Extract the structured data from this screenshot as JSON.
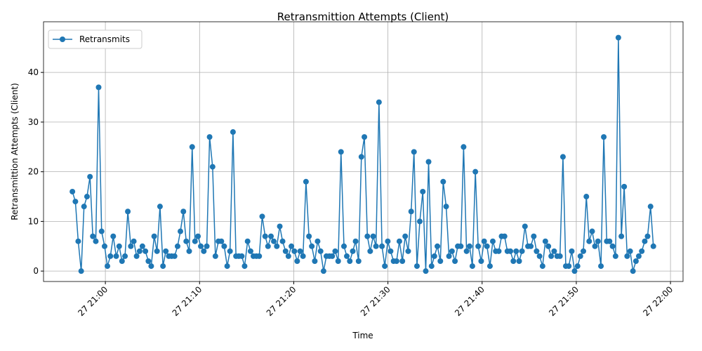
{
  "chart_data": {
    "type": "line",
    "title": "Retransmittion Attempts (Client)",
    "xlabel": "Time",
    "ylabel": "Retransmittion Attempts (Client)",
    "x": [
      "27 20:56:30",
      "27 20:56:49",
      "27 20:57:07",
      "27 20:57:26",
      "27 20:57:44",
      "27 20:58:03",
      "27 20:58:22",
      "27 20:58:40",
      "27 20:58:59",
      "27 20:59:17",
      "27 20:59:36",
      "27 20:59:55",
      "27 21:00:13",
      "27 21:00:32",
      "27 21:00:50",
      "27 21:01:09",
      "27 21:01:28",
      "27 21:01:46",
      "27 21:02:05",
      "27 21:02:23",
      "27 21:02:42",
      "27 21:03:01",
      "27 21:03:19",
      "27 21:03:38",
      "27 21:03:56",
      "27 21:04:15",
      "27 21:04:34",
      "27 21:04:52",
      "27 21:05:11",
      "27 21:05:29",
      "27 21:05:48",
      "27 21:06:07",
      "27 21:06:25",
      "27 21:06:44",
      "27 21:07:02",
      "27 21:07:21",
      "27 21:07:40",
      "27 21:07:58",
      "27 21:08:17",
      "27 21:08:35",
      "27 21:08:54",
      "27 21:09:13",
      "27 21:09:31",
      "27 21:09:50",
      "27 21:10:08",
      "27 21:10:27",
      "27 21:10:46",
      "27 21:11:04",
      "27 21:11:23",
      "27 21:11:41",
      "27 21:12:00",
      "27 21:12:19",
      "27 21:12:37",
      "27 21:12:56",
      "27 21:13:14",
      "27 21:13:33",
      "27 21:13:52",
      "27 21:14:10",
      "27 21:14:29",
      "27 21:14:47",
      "27 21:15:06",
      "27 21:15:25",
      "27 21:15:43",
      "27 21:16:02",
      "27 21:16:20",
      "27 21:16:39",
      "27 21:16:58",
      "27 21:17:16",
      "27 21:17:35",
      "27 21:17:53",
      "27 21:18:12",
      "27 21:18:31",
      "27 21:18:49",
      "27 21:19:08",
      "27 21:19:26",
      "27 21:19:45",
      "27 21:20:04",
      "27 21:20:22",
      "27 21:20:41",
      "27 21:20:59",
      "27 21:21:18",
      "27 21:21:37",
      "27 21:21:55",
      "27 21:22:14",
      "27 21:22:32",
      "27 21:22:51",
      "27 21:23:10",
      "27 21:23:28",
      "27 21:23:47",
      "27 21:24:05",
      "27 21:24:24",
      "27 21:24:43",
      "27 21:25:01",
      "27 21:25:20",
      "27 21:25:38",
      "27 21:25:57",
      "27 21:26:16",
      "27 21:26:34",
      "27 21:26:53",
      "27 21:27:11",
      "27 21:27:30",
      "27 21:27:49",
      "27 21:28:07",
      "27 21:28:26",
      "27 21:28:44",
      "27 21:29:03",
      "27 21:29:22",
      "27 21:29:40",
      "27 21:29:59",
      "27 21:30:17",
      "27 21:30:36",
      "27 21:30:55",
      "27 21:31:13",
      "27 21:31:32",
      "27 21:31:50",
      "27 21:32:09",
      "27 21:32:28",
      "27 21:32:46",
      "27 21:33:05",
      "27 21:33:23",
      "27 21:33:42",
      "27 21:34:01",
      "27 21:34:19",
      "27 21:34:38",
      "27 21:34:56",
      "27 21:35:15",
      "27 21:35:34",
      "27 21:35:52",
      "27 21:36:11",
      "27 21:36:29",
      "27 21:36:48",
      "27 21:37:07",
      "27 21:37:25",
      "27 21:37:44",
      "27 21:38:02",
      "27 21:38:21",
      "27 21:38:40",
      "27 21:38:58",
      "27 21:39:17",
      "27 21:39:35",
      "27 21:39:54",
      "27 21:40:13",
      "27 21:40:31",
      "27 21:40:50",
      "27 21:41:08",
      "27 21:41:27",
      "27 21:41:46",
      "27 21:42:04",
      "27 21:42:23",
      "27 21:42:41",
      "27 21:43:00",
      "27 21:43:19",
      "27 21:43:37",
      "27 21:43:56",
      "27 21:44:14",
      "27 21:44:33",
      "27 21:44:52",
      "27 21:45:10",
      "27 21:45:29",
      "27 21:45:47",
      "27 21:46:06",
      "27 21:46:25",
      "27 21:46:43",
      "27 21:47:02",
      "27 21:47:20",
      "27 21:47:39",
      "27 21:47:58",
      "27 21:48:16",
      "27 21:48:35",
      "27 21:48:53",
      "27 21:49:12",
      "27 21:49:31",
      "27 21:49:49",
      "27 21:50:08",
      "27 21:50:26",
      "27 21:50:45",
      "27 21:51:04",
      "27 21:51:22",
      "27 21:51:41",
      "27 21:51:59",
      "27 21:52:18",
      "27 21:52:37",
      "27 21:52:55",
      "27 21:53:14",
      "27 21:53:32",
      "27 21:53:51",
      "27 21:54:10",
      "27 21:54:28",
      "27 21:54:47",
      "27 21:55:05",
      "27 21:55:24",
      "27 21:55:43",
      "27 21:56:01",
      "27 21:56:20",
      "27 21:56:38",
      "27 21:56:57",
      "27 21:57:16",
      "27 21:57:34",
      "27 21:57:53",
      "27 21:58:11"
    ],
    "series": [
      {
        "name": "Retransmits",
        "color": "#1f77b4",
        "values": [
          16,
          14,
          6,
          0,
          13,
          15,
          19,
          7,
          6,
          37,
          8,
          5,
          1,
          3,
          7,
          3,
          5,
          2,
          3,
          12,
          5,
          6,
          3,
          4,
          5,
          4,
          2,
          1,
          7,
          4,
          13,
          1,
          4,
          3,
          3,
          3,
          5,
          8,
          12,
          6,
          4,
          25,
          6,
          7,
          5,
          4,
          5,
          27,
          21,
          3,
          6,
          6,
          5,
          1,
          4,
          28,
          3,
          3,
          3,
          1,
          6,
          4,
          3,
          3,
          3,
          11,
          7,
          5,
          7,
          6,
          5,
          9,
          6,
          4,
          3,
          5,
          4,
          2,
          4,
          3,
          18,
          7,
          5,
          2,
          6,
          4,
          0,
          3,
          3,
          3,
          4,
          2,
          24,
          5,
          3,
          2,
          4,
          6,
          2,
          23,
          27,
          7,
          4,
          7,
          5,
          34,
          5,
          1,
          6,
          4,
          2,
          2,
          6,
          2,
          7,
          4,
          12,
          24,
          1,
          10,
          16,
          0,
          22,
          1,
          3,
          5,
          2,
          18,
          13,
          3,
          4,
          2,
          5,
          5,
          25,
          4,
          5,
          1,
          20,
          5,
          2,
          6,
          5,
          1,
          6,
          4,
          4,
          7,
          7,
          4,
          4,
          2,
          4,
          2,
          4,
          9,
          5,
          5,
          7,
          4,
          3,
          1,
          6,
          5,
          3,
          4,
          3,
          3,
          23,
          1,
          1,
          4,
          0,
          1,
          3,
          4,
          15,
          6,
          8,
          5,
          6,
          1,
          27,
          6,
          6,
          5,
          3,
          47,
          7,
          17,
          3,
          4,
          0,
          2,
          3,
          4,
          6,
          7,
          13,
          5
        ]
      }
    ],
    "xlim": [
      "27 20:53:26",
      "27 22:01:20"
    ],
    "xticks": [
      "27 21:00",
      "27 21:10",
      "27 21:20",
      "27 21:30",
      "27 21:40",
      "27 21:50",
      "27 22:00"
    ],
    "ylim": [
      -2.1,
      50.2
    ],
    "yticks": [
      0,
      10,
      20,
      30,
      40
    ],
    "grid": true,
    "legend": "upper left"
  }
}
